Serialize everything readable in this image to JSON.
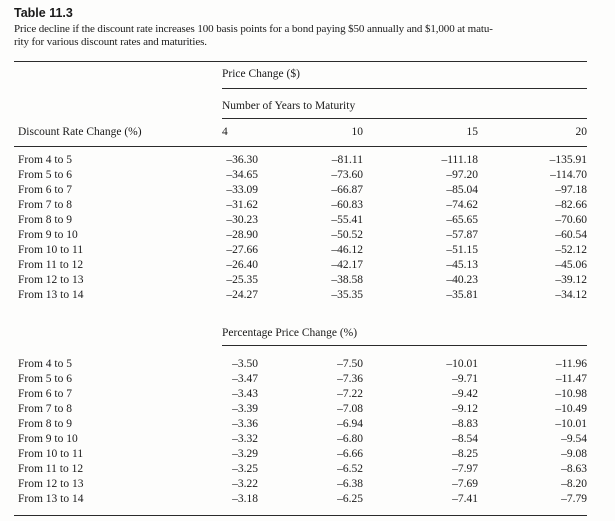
{
  "table": {
    "label": "Table 11.3",
    "caption_lines": [
      "Price decline if the discount rate increases 100 basis points for a bond paying $50 annually and $1,000 at matu-",
      "rity for various discount rates and maturities."
    ]
  },
  "columns": {
    "subgroup_title": "Number of Years to Maturity",
    "row_header": "Discount Rate Change (%)",
    "maturities": [
      "4",
      "10",
      "15",
      "20"
    ]
  },
  "sections": [
    {
      "title": "Price Change ($)",
      "rows": [
        {
          "label": "From 4 to 5",
          "values": [
            "–36.30",
            "–81.11",
            "–111.18",
            "–135.91"
          ]
        },
        {
          "label": "From 5 to 6",
          "values": [
            "–34.65",
            "–73.60",
            "–97.20",
            "–114.70"
          ]
        },
        {
          "label": "From 6 to 7",
          "values": [
            "–33.09",
            "–66.87",
            "–85.04",
            "–97.18"
          ]
        },
        {
          "label": "From 7 to 8",
          "values": [
            "–31.62",
            "–60.83",
            "–74.62",
            "–82.66"
          ]
        },
        {
          "label": "From 8 to 9",
          "values": [
            "–30.23",
            "–55.41",
            "–65.65",
            "–70.60"
          ]
        },
        {
          "label": "From 9 to 10",
          "values": [
            "–28.90",
            "–50.52",
            "–57.87",
            "–60.54"
          ]
        },
        {
          "label": "From 10 to 11",
          "values": [
            "–27.66",
            "–46.12",
            "–51.15",
            "–52.12"
          ]
        },
        {
          "label": "From 11 to 12",
          "values": [
            "–26.40",
            "–42.17",
            "–45.13",
            "–45.06"
          ]
        },
        {
          "label": "From 12 to 13",
          "values": [
            "–25.35",
            "–38.58",
            "–40.23",
            "–39.12"
          ]
        },
        {
          "label": "From 13 to 14",
          "values": [
            "–24.27",
            "–35.35",
            "–35.81",
            "–34.12"
          ]
        }
      ]
    },
    {
      "title": "Percentage Price Change (%)",
      "rows": [
        {
          "label": "From 4 to 5",
          "values": [
            "–3.50",
            "–7.50",
            "–10.01",
            "–11.96"
          ]
        },
        {
          "label": "From 5 to 6",
          "values": [
            "–3.47",
            "–7.36",
            "–9.71",
            "–11.47"
          ]
        },
        {
          "label": "From 6 to 7",
          "values": [
            "–3.43",
            "–7.22",
            "–9.42",
            "–10.98"
          ]
        },
        {
          "label": "From 7 to 8",
          "values": [
            "–3.39",
            "–7.08",
            "–9.12",
            "–10.49"
          ]
        },
        {
          "label": "From 8 to 9",
          "values": [
            "–3.36",
            "–6.94",
            "–8.83",
            "–10.01"
          ]
        },
        {
          "label": "From 9 to 10",
          "values": [
            "–3.32",
            "–6.80",
            "–8.54",
            "–9.54"
          ]
        },
        {
          "label": "From 10 to 11",
          "values": [
            "–3.29",
            "–6.66",
            "–8.25",
            "–9.08"
          ]
        },
        {
          "label": "From 11 to 12",
          "values": [
            "–3.25",
            "–6.52",
            "–7.97",
            "–8.63"
          ]
        },
        {
          "label": "From 12 to 13",
          "values": [
            "–3.22",
            "–6.38",
            "–7.69",
            "–8.20"
          ]
        },
        {
          "label": "From 13 to 14",
          "values": [
            "–3.18",
            "–6.25",
            "–7.41",
            "–7.79"
          ]
        }
      ]
    }
  ]
}
